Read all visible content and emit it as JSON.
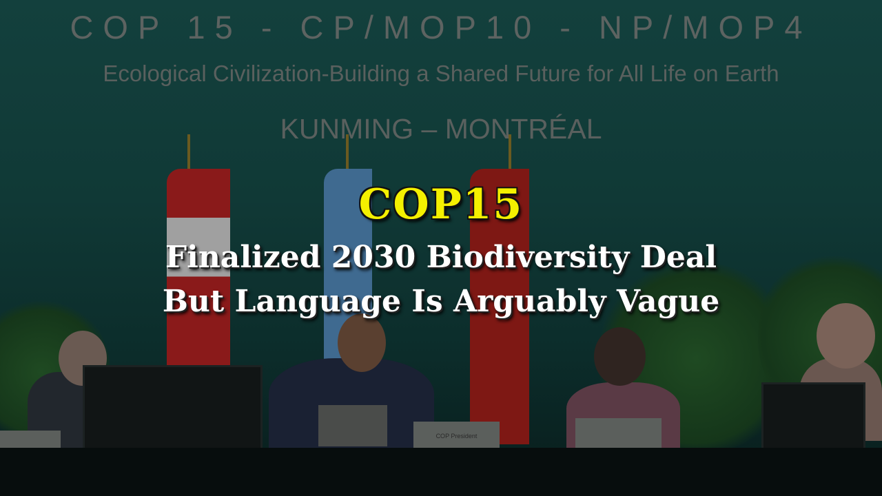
{
  "backdrop": {
    "title": "COP 15 - CP/MOP10 - NP/MOP4",
    "subtitle": "Ecological Civilization-Building a Shared Future for All Life on Earth",
    "location": "KUNMING – MONTRÉAL"
  },
  "headline": {
    "tag": "COP15",
    "line1": "Finalized 2030 Biodiversity Deal",
    "line2": "But Language Is Arguably Vague",
    "tag_color": "#f4f000",
    "text_color": "#ffffff"
  },
  "nameplates": {
    "president": "COP President"
  }
}
